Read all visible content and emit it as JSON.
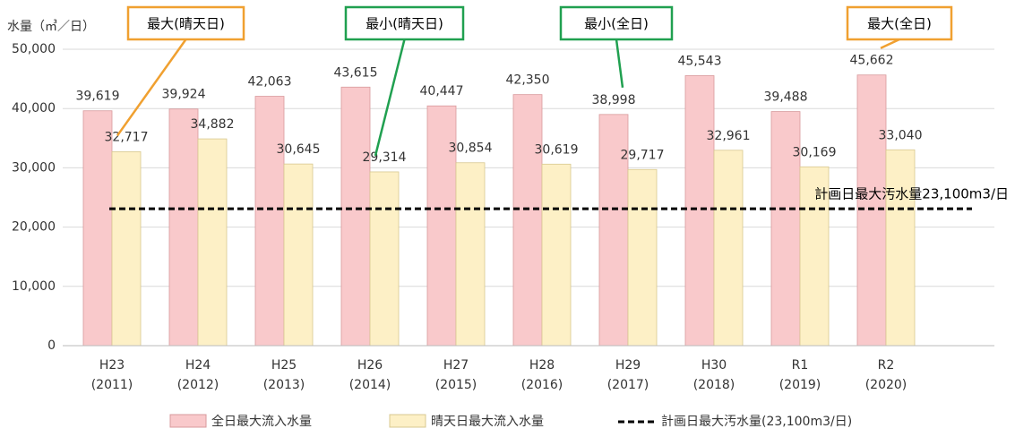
{
  "chart_data": {
    "type": "bar",
    "y_axis_label": "水量（㎥／日）",
    "categories": [
      "H23 (2011)",
      "H24 (2012)",
      "H25 (2013)",
      "H26 (2014)",
      "H27 (2015)",
      "H28 (2016)",
      "H29 (2017)",
      "H30 (2018)",
      "R1 (2019)",
      "R2 (2020)"
    ],
    "series": [
      {
        "name": "全日最大流入水量",
        "color": "#f9c9cb",
        "values": [
          39619,
          39924,
          42063,
          43615,
          40447,
          42350,
          38998,
          45543,
          39488,
          45662
        ],
        "value_labels": [
          "39,619",
          "39,924",
          "42,063",
          "43,615",
          "40,447",
          "42,350",
          "38,998",
          "45,543",
          "39,488",
          "45,662"
        ]
      },
      {
        "name": "晴天日最大流入水量",
        "color": "#fdf0c6",
        "values": [
          32717,
          34882,
          30645,
          29314,
          30854,
          30619,
          29717,
          32961,
          30169,
          33040
        ],
        "value_labels": [
          "32,717",
          "34,882",
          "30,645",
          "29,314",
          "30,854",
          "30,619",
          "29,717",
          "32,961",
          "30,169",
          "33,040"
        ]
      }
    ],
    "reference_line": {
      "name": "計画日最大汚水量(23,100m3/日)",
      "label": "計画日最大汚水量23,100m3/日",
      "value": 23100,
      "color": "#000000"
    },
    "annotations": [
      {
        "text": "最大(晴天日)",
        "color": "#f0a030"
      },
      {
        "text": "最小(晴天日)",
        "color": "#20a050"
      },
      {
        "text": "最小(全日)",
        "color": "#20a050"
      },
      {
        "text": "最大(全日)",
        "color": "#f0a030"
      }
    ],
    "ylim": [
      0,
      50000
    ],
    "yticks": [
      0,
      {
        "value": 10000,
        "label": "10,000"
      },
      {
        "value": 20000,
        "label": "20,000"
      },
      {
        "value": 30000,
        "label": "30,000"
      },
      {
        "value": 40000,
        "label": "40,000"
      },
      {
        "value": 50000,
        "label": "50,000"
      }
    ],
    "grid": true
  }
}
